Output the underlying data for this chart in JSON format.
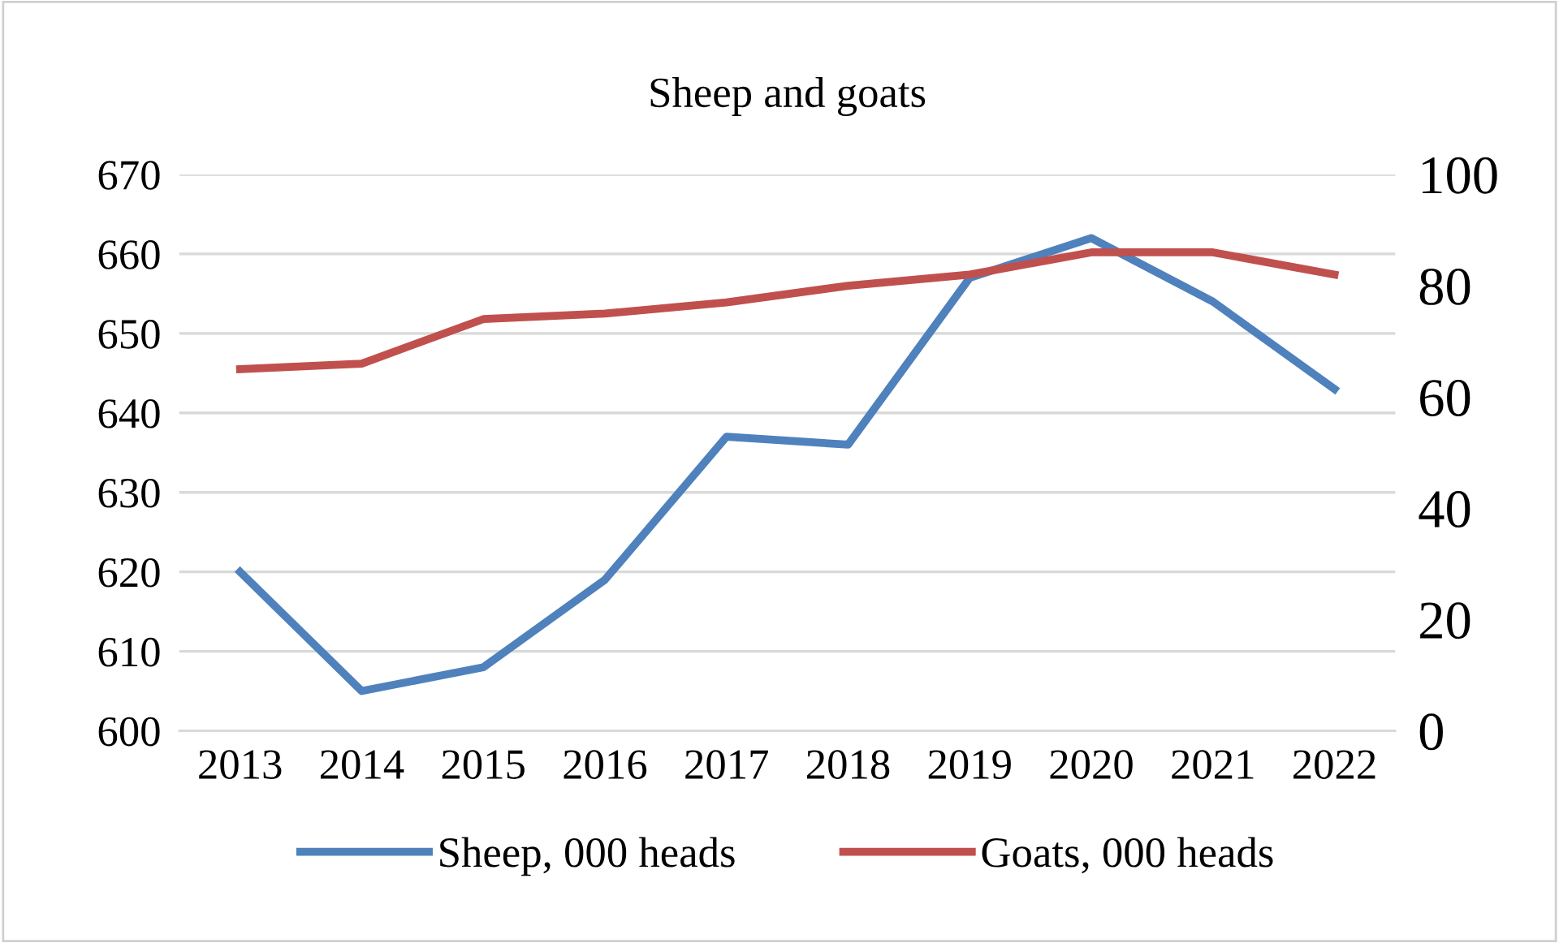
{
  "chart_data": {
    "type": "line",
    "title": "Sheep and goats",
    "categories": [
      "2013",
      "2014",
      "2015",
      "2016",
      "2017",
      "2018",
      "2019",
      "2020",
      "2021",
      "2022"
    ],
    "series": [
      {
        "name": "Sheep, 000 heads",
        "color": "#4f81bd",
        "values": [
          620,
          605,
          608,
          619,
          637,
          636,
          657,
          662,
          654,
          643
        ]
      },
      {
        "name": "Goats, 000 heads",
        "color": "#c0504d",
        "axis": "y2",
        "values": [
          65,
          66,
          74,
          75,
          77,
          80,
          82,
          86,
          86,
          82
        ]
      }
    ],
    "ylim": [
      600,
      670
    ],
    "yticks": [
      600,
      610,
      620,
      630,
      640,
      650,
      660,
      670
    ],
    "y2lim": [
      0,
      100
    ],
    "y2ticks": [
      0,
      20,
      40,
      60,
      80,
      100
    ],
    "grid": "y",
    "legend": "bottom",
    "marker": "none",
    "line_style": "solid"
  }
}
